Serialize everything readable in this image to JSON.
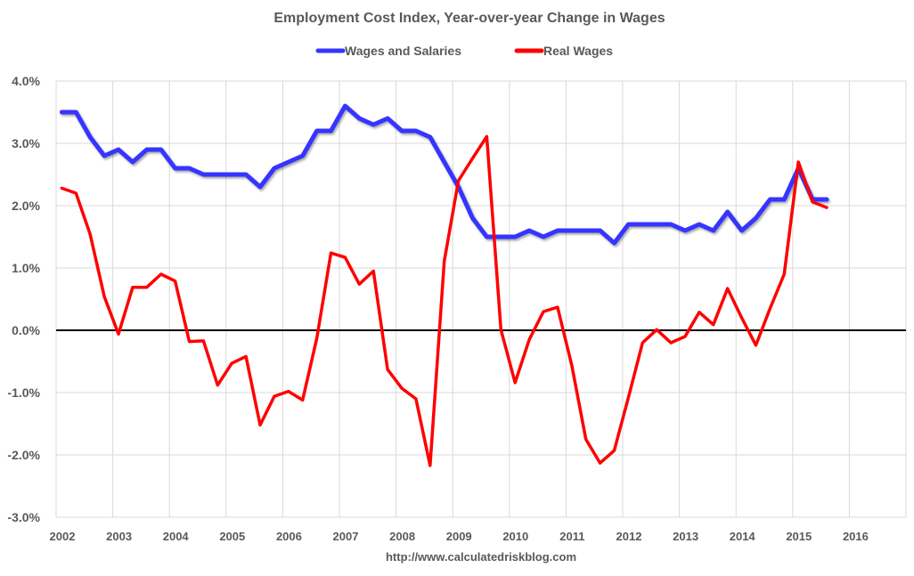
{
  "chart_data": {
    "type": "line",
    "title": "Employment Cost Index, Year-over-year Change in Wages",
    "xlabel": "",
    "ylabel": "",
    "footer": "http://www.calculatedriskblog.com",
    "legend_position": "top",
    "grid": true,
    "xlim": [
      2002,
      2017
    ],
    "ylim": [
      -3.0,
      4.0
    ],
    "x_tick_labels": [
      "2002",
      "2003",
      "2004",
      "2005",
      "2006",
      "2007",
      "2008",
      "2009",
      "2010",
      "2011",
      "2012",
      "2013",
      "2014",
      "2015",
      "2016"
    ],
    "y_tick_labels": [
      "4.0%",
      "3.0%",
      "2.0%",
      "1.0%",
      "0.0%",
      "-1.0%",
      "-2.0%",
      "-3.0%"
    ],
    "y_ticks": [
      4,
      3,
      2,
      1,
      0,
      -1,
      -2,
      -3
    ],
    "x": [
      "2002Q1",
      "2002Q2",
      "2002Q3",
      "2002Q4",
      "2003Q1",
      "2003Q2",
      "2003Q3",
      "2003Q4",
      "2004Q1",
      "2004Q2",
      "2004Q3",
      "2004Q4",
      "2005Q1",
      "2005Q2",
      "2005Q3",
      "2005Q4",
      "2006Q1",
      "2006Q2",
      "2006Q3",
      "2006Q4",
      "2007Q1",
      "2007Q2",
      "2007Q3",
      "2007Q4",
      "2008Q1",
      "2008Q2",
      "2008Q3",
      "2008Q4",
      "2009Q1",
      "2009Q2",
      "2009Q3",
      "2009Q4",
      "2010Q1",
      "2010Q2",
      "2010Q3",
      "2010Q4",
      "2011Q1",
      "2011Q2",
      "2011Q3",
      "2011Q4",
      "2012Q1",
      "2012Q2",
      "2012Q3",
      "2012Q4",
      "2013Q1",
      "2013Q2",
      "2013Q3",
      "2013Q4",
      "2014Q1",
      "2014Q2",
      "2014Q3",
      "2014Q4",
      "2015Q1",
      "2015Q2",
      "2015Q3"
    ],
    "series": [
      {
        "name": "Wages and Salaries",
        "color": "#3535FF",
        "values": [
          3.5,
          3.5,
          3.1,
          2.8,
          2.9,
          2.7,
          2.9,
          2.9,
          2.6,
          2.6,
          2.5,
          2.5,
          2.5,
          2.5,
          2.3,
          2.6,
          2.7,
          2.8,
          3.2,
          3.2,
          3.6,
          3.4,
          3.3,
          3.4,
          3.2,
          3.2,
          3.1,
          2.7,
          2.3,
          1.8,
          1.5,
          1.5,
          1.5,
          1.6,
          1.5,
          1.6,
          1.6,
          1.6,
          1.6,
          1.4,
          1.7,
          1.7,
          1.7,
          1.7,
          1.6,
          1.7,
          1.6,
          1.9,
          1.6,
          1.8,
          2.1,
          2.1,
          2.6,
          2.1,
          2.1
        ]
      },
      {
        "name": "Real Wages",
        "color": "#FF0000",
        "values": [
          2.28,
          2.2,
          1.54,
          0.54,
          -0.06,
          0.69,
          0.69,
          0.9,
          0.79,
          -0.18,
          -0.17,
          -0.88,
          -0.53,
          -0.42,
          -1.52,
          -1.06,
          -0.98,
          -1.12,
          -0.13,
          1.24,
          1.17,
          0.74,
          0.95,
          -0.63,
          -0.93,
          -1.1,
          -2.17,
          1.11,
          2.4,
          2.76,
          3.11,
          0.01,
          -0.84,
          -0.15,
          0.3,
          0.37,
          -0.56,
          -1.75,
          -2.13,
          -1.93,
          -1.08,
          -0.2,
          0.01,
          -0.2,
          -0.1,
          0.29,
          0.09,
          0.67,
          0.2,
          -0.24,
          0.35,
          0.9,
          2.7,
          2.06,
          1.97
        ]
      }
    ]
  }
}
